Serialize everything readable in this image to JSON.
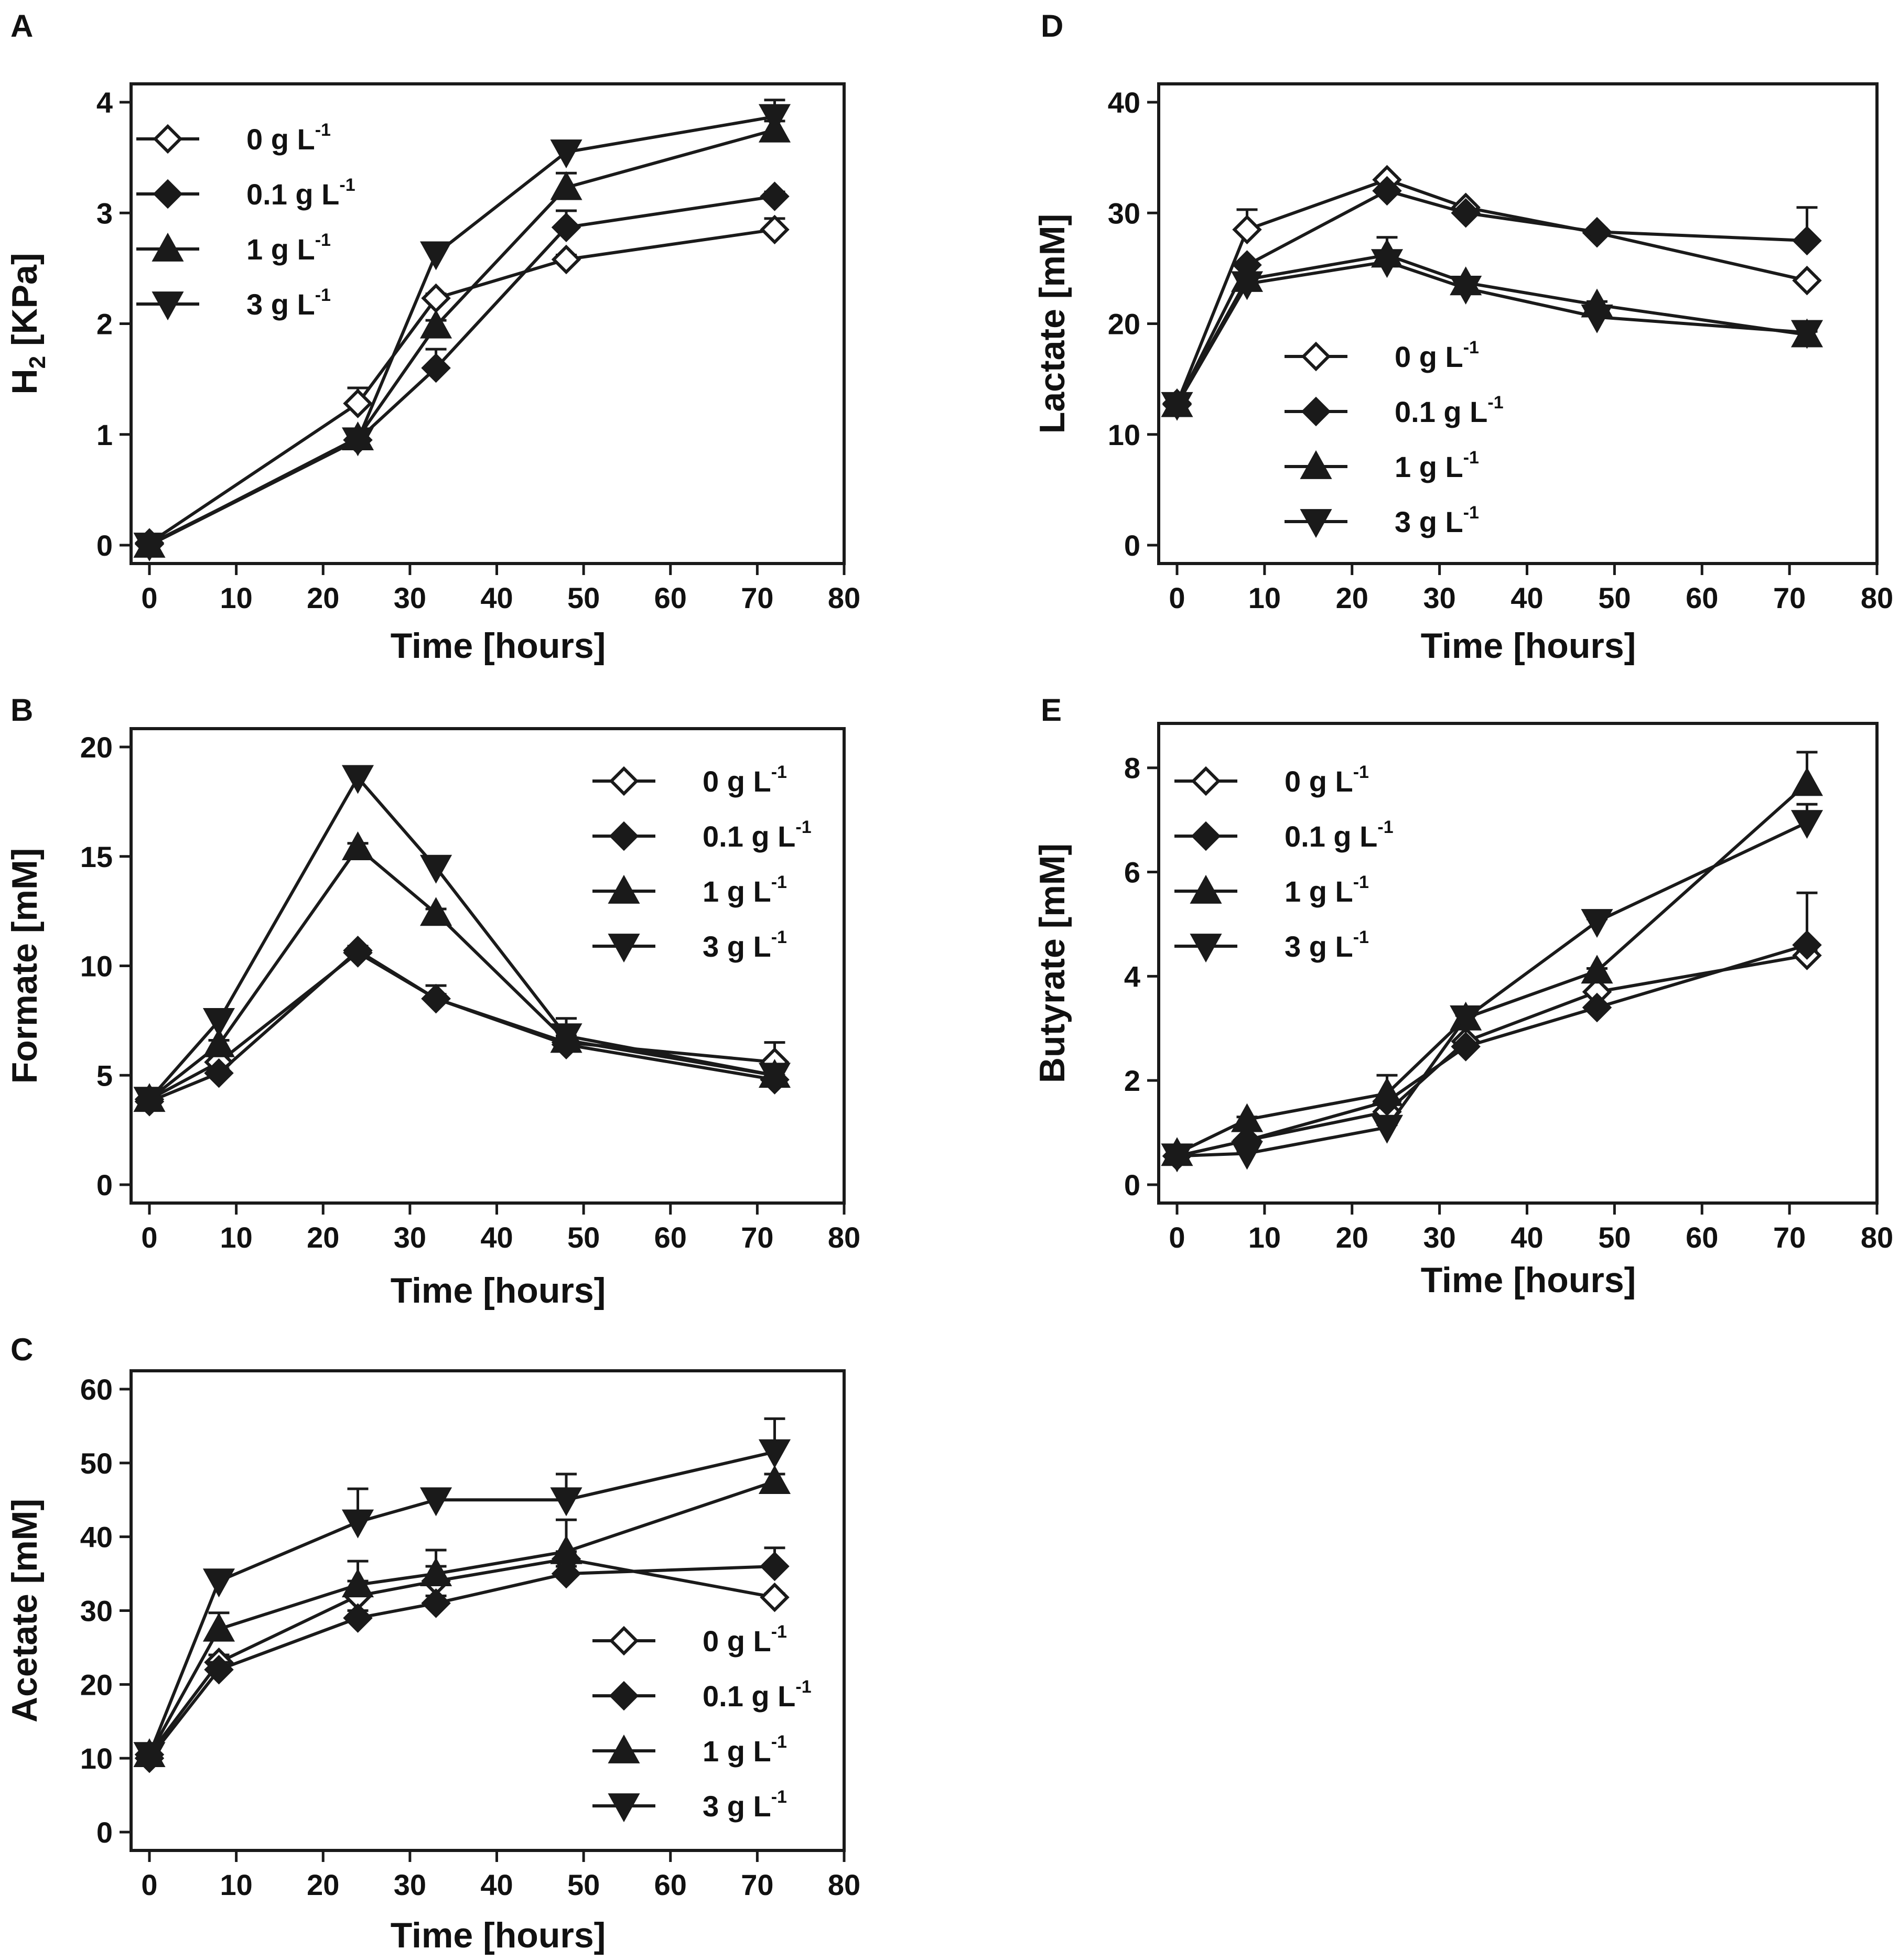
{
  "figure": {
    "legend_labels": [
      "0 g L",
      "0.1 g L",
      "1 g L",
      "3 g L"
    ],
    "legend_superscript": "-1",
    "series_names": [
      "0 g L-1",
      "0.1 g L-1",
      "1 g L-1",
      "3 g L-1"
    ],
    "series_markers": [
      "diamond-open",
      "diamond-filled",
      "triangle-up",
      "triangle-down"
    ],
    "line_color": "#1a1a1a"
  },
  "chart_data": [
    {
      "panel": "A",
      "type": "line",
      "title": "",
      "xlabel": "Time [hours]",
      "ylabel_main": "H",
      "ylabel_sub": "2",
      "ylabel_rest": " [KPa]",
      "xlim": [
        0,
        80
      ],
      "ylim": [
        0,
        4
      ],
      "xticks": [
        0,
        10,
        20,
        30,
        40,
        50,
        60,
        70,
        80
      ],
      "yticks": [
        0,
        1,
        2,
        3,
        4
      ],
      "legend_position": "top-left",
      "x": [
        0,
        24,
        33,
        48,
        72
      ],
      "series": [
        {
          "name": "0 g L-1",
          "values": [
            0.02,
            1.28,
            2.23,
            2.58,
            2.85
          ],
          "errors": [
            0.02,
            0.14,
            0.04,
            0.04,
            0.1
          ]
        },
        {
          "name": "0.1 g L-1",
          "values": [
            0.01,
            0.95,
            1.6,
            2.87,
            3.15
          ],
          "errors": [
            0.02,
            0.05,
            0.17,
            0.15,
            0.04
          ]
        },
        {
          "name": "1 g L-1",
          "values": [
            0.0,
            0.97,
            1.98,
            3.23,
            3.75
          ],
          "errors": [
            0.02,
            0.05,
            0.05,
            0.13,
            0.08
          ]
        },
        {
          "name": "3 g L-1",
          "values": [
            0.0,
            0.95,
            2.63,
            3.55,
            3.87
          ],
          "errors": [
            0.02,
            0.05,
            0.05,
            0.04,
            0.15
          ]
        }
      ]
    },
    {
      "panel": "B",
      "type": "line",
      "title": "",
      "xlabel": "Time [hours]",
      "ylabel_main": "Formate [mM]",
      "ylabel_sub": "",
      "ylabel_rest": "",
      "xlim": [
        0,
        80
      ],
      "ylim": [
        0,
        20
      ],
      "xticks": [
        0,
        10,
        20,
        30,
        40,
        50,
        60,
        70,
        80
      ],
      "yticks": [
        0,
        5,
        10,
        15,
        20
      ],
      "legend_position": "top-right",
      "x": [
        0,
        8,
        24,
        33,
        48,
        72
      ],
      "series": [
        {
          "name": "0 g L-1",
          "values": [
            3.9,
            5.6,
            10.6,
            8.5,
            6.5,
            5.6
          ],
          "errors": [
            0.2,
            0.2,
            0.2,
            0.2,
            0.3,
            0.9
          ]
        },
        {
          "name": "0.1 g L-1",
          "values": [
            3.8,
            5.1,
            10.7,
            8.5,
            6.4,
            4.8
          ],
          "errors": [
            0.2,
            0.2,
            0.2,
            0.6,
            0.3,
            0.2
          ]
        },
        {
          "name": "1 g L-1",
          "values": [
            3.9,
            6.4,
            15.4,
            12.4,
            6.6,
            5.0
          ],
          "errors": [
            0.2,
            0.2,
            0.2,
            0.2,
            0.6,
            0.3
          ]
        },
        {
          "name": "3 g L-1",
          "values": [
            3.9,
            7.5,
            18.6,
            14.5,
            6.8,
            5.0
          ],
          "errors": [
            0.2,
            0.2,
            0.2,
            0.5,
            0.8,
            0.3
          ]
        }
      ]
    },
    {
      "panel": "C",
      "type": "line",
      "title": "",
      "xlabel": "Time [hours]",
      "ylabel_main": "Acetate [mM]",
      "ylabel_sub": "",
      "ylabel_rest": "",
      "xlim": [
        0,
        80
      ],
      "ylim": [
        0,
        60
      ],
      "xticks": [
        0,
        10,
        20,
        30,
        40,
        50,
        60,
        70,
        80
      ],
      "yticks": [
        0,
        10,
        20,
        30,
        40,
        50,
        60
      ],
      "legend_position": "bottom-right",
      "x": [
        0,
        8,
        24,
        33,
        48,
        72
      ],
      "series": [
        {
          "name": "0 g L-1",
          "values": [
            10.5,
            23.0,
            32.0,
            34.0,
            37.0,
            31.8
          ],
          "errors": [
            0.5,
            1.0,
            2.0,
            2.0,
            1.0,
            0.5
          ]
        },
        {
          "name": "0.1 g L-1",
          "values": [
            10.0,
            22.0,
            29.0,
            31.0,
            35.0,
            36.0
          ],
          "errors": [
            0.5,
            1.0,
            1.0,
            1.0,
            1.0,
            2.5
          ]
        },
        {
          "name": "1 g L-1",
          "values": [
            10.5,
            27.5,
            33.5,
            35.0,
            38.0,
            47.5
          ],
          "errors": [
            0.5,
            2.2,
            3.2,
            3.2,
            4.3,
            1.0
          ]
        },
        {
          "name": "3 g L-1",
          "values": [
            10.5,
            34.0,
            42.0,
            45.0,
            45.0,
            51.5
          ],
          "errors": [
            0.5,
            0.5,
            4.5,
            0.5,
            3.5,
            4.5
          ]
        }
      ]
    },
    {
      "panel": "D",
      "type": "line",
      "title": "",
      "xlabel": "Time [hours]",
      "ylabel_main": "Lactate [mM]",
      "ylabel_sub": "",
      "ylabel_rest": "",
      "xlim": [
        0,
        80
      ],
      "ylim": [
        0,
        40
      ],
      "xticks": [
        0,
        10,
        20,
        30,
        40,
        50,
        60,
        70,
        80
      ],
      "yticks": [
        0,
        10,
        20,
        30,
        40
      ],
      "legend_position": "center",
      "x": [
        0,
        8,
        24,
        33,
        48,
        72
      ],
      "series": [
        {
          "name": "0 g L-1",
          "values": [
            12.8,
            28.5,
            33.0,
            30.5,
            28.2,
            23.9
          ],
          "errors": [
            0.3,
            1.8,
            0.3,
            0.3,
            0.3,
            0.3
          ]
        },
        {
          "name": "0.1 g L-1",
          "values": [
            12.7,
            25.3,
            32.0,
            30.0,
            28.3,
            27.5
          ],
          "errors": [
            0.3,
            0.3,
            0.3,
            0.3,
            0.3,
            3.0
          ]
        },
        {
          "name": "1 g L-1",
          "values": [
            12.7,
            24.0,
            26.2,
            23.7,
            21.7,
            19.0
          ],
          "errors": [
            0.3,
            0.3,
            1.6,
            0.3,
            0.3,
            0.3
          ]
        },
        {
          "name": "3 g L-1",
          "values": [
            12.7,
            23.6,
            25.6,
            23.2,
            20.6,
            19.2
          ],
          "errors": [
            0.3,
            0.3,
            0.3,
            0.3,
            0.3,
            0.3
          ]
        }
      ]
    },
    {
      "panel": "E",
      "type": "line",
      "title": "",
      "xlabel": "Time [hours]",
      "ylabel_main": "Butyrate [mM]",
      "ylabel_sub": "",
      "ylabel_rest": "",
      "xlim": [
        0,
        80
      ],
      "ylim": [
        0,
        8.5
      ],
      "xticks": [
        0,
        10,
        20,
        30,
        40,
        50,
        60,
        70,
        80
      ],
      "yticks": [
        0,
        2,
        4,
        6,
        8
      ],
      "legend_position": "top-left",
      "x": [
        0,
        8,
        24,
        33,
        48,
        72
      ],
      "series": [
        {
          "name": "0 g L-1",
          "values": [
            0.55,
            0.85,
            1.4,
            2.75,
            3.7,
            4.4
          ],
          "errors": [
            0.05,
            0.05,
            0.05,
            0.05,
            0.05,
            0.1
          ]
        },
        {
          "name": "0.1 g L-1",
          "values": [
            0.55,
            0.85,
            1.6,
            2.65,
            3.4,
            4.6
          ],
          "errors": [
            0.05,
            0.05,
            0.05,
            0.05,
            0.05,
            1.0
          ]
        },
        {
          "name": "1 g L-1",
          "values": [
            0.6,
            1.25,
            1.75,
            3.2,
            4.1,
            7.7
          ],
          "errors": [
            0.05,
            0.05,
            0.35,
            0.05,
            0.05,
            0.6
          ]
        },
        {
          "name": "3 g L-1",
          "values": [
            0.55,
            0.6,
            1.1,
            3.2,
            5.05,
            6.95
          ],
          "errors": [
            0.05,
            0.05,
            0.05,
            0.05,
            0.05,
            0.35
          ]
        }
      ]
    }
  ]
}
